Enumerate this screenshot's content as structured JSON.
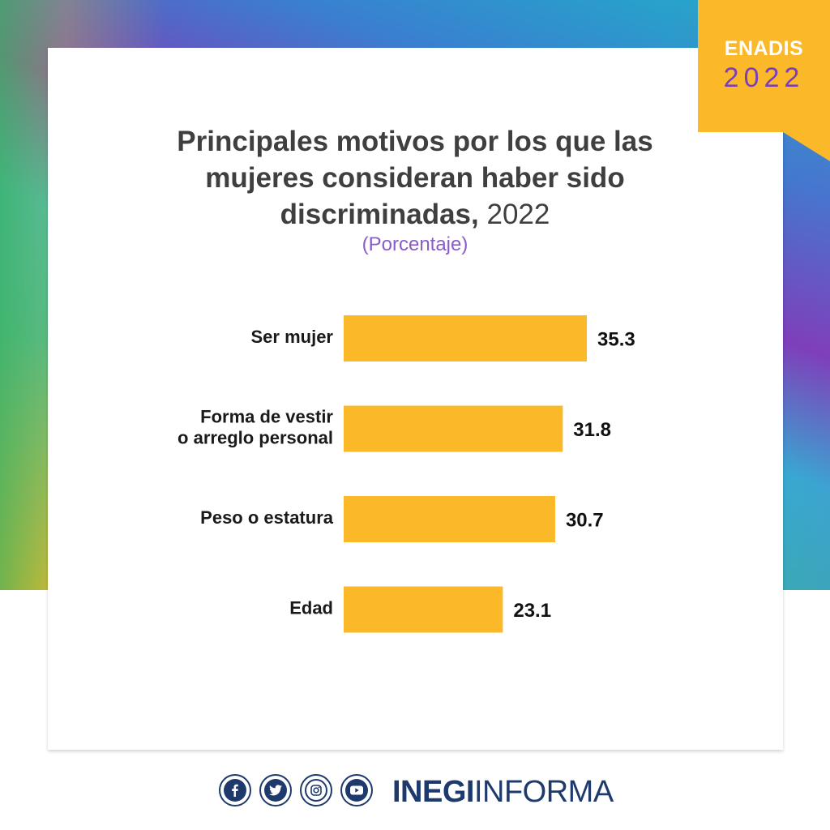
{
  "badge": {
    "name": "ENADIS",
    "year": "2022"
  },
  "header": {
    "title_bold": "Principales motivos por los que las mujeres consideran haber sido discriminadas,",
    "title_year": "2022",
    "subtitle": "(Porcentaje)"
  },
  "chart_data": {
    "type": "bar",
    "orientation": "horizontal",
    "categories": [
      [
        "Ser mujer"
      ],
      [
        "Forma de vestir",
        "o arreglo personal"
      ],
      [
        "Peso o estatura"
      ],
      [
        "Edad"
      ]
    ],
    "values": [
      35.3,
      31.8,
      30.7,
      23.1
    ],
    "value_labels": [
      "35.3",
      "31.8",
      "30.7",
      "23.1"
    ],
    "bar_color": "#fbb829",
    "grid": false
  },
  "footer": {
    "social_icons": [
      "facebook-icon",
      "twitter-icon",
      "instagram-icon",
      "youtube-icon"
    ],
    "brand_bold": "INEGI",
    "brand_light": "INFORMA",
    "brand_color": "#1e3a6d"
  }
}
